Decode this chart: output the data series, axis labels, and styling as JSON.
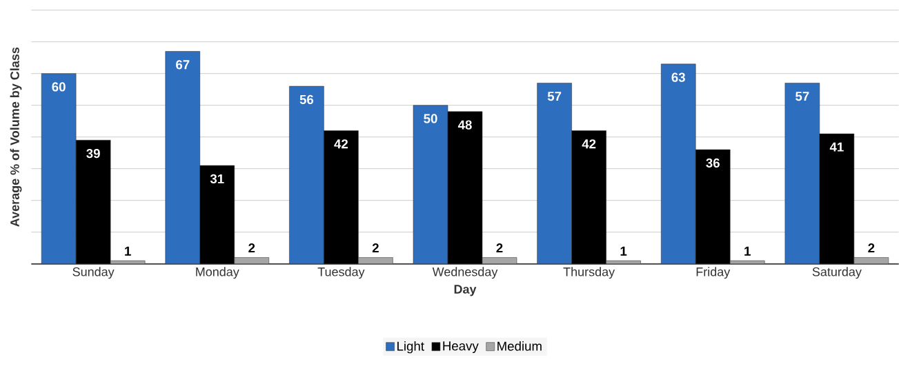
{
  "chart_data": {
    "type": "bar",
    "xlabel": "Day",
    "ylabel": "Average % of Volume by Class",
    "categories": [
      "Sunday",
      "Monday",
      "Tuesday",
      "Wednesday",
      "Thursday",
      "Friday",
      "Saturday"
    ],
    "series": [
      {
        "name": "Light",
        "color": "#2e6ebe",
        "values": [
          60,
          67,
          56,
          50,
          57,
          63,
          57
        ]
      },
      {
        "name": "Heavy",
        "color": "#000000",
        "values": [
          39,
          31,
          42,
          48,
          42,
          36,
          41
        ]
      },
      {
        "name": "Medium",
        "color": "#a6a6a6",
        "values": [
          1,
          2,
          2,
          2,
          1,
          1,
          2
        ]
      }
    ],
    "ylim": [
      0,
      80
    ],
    "yticks": [
      {
        "value": 0,
        "label": null
      },
      {
        "value": 10,
        "label": null
      },
      {
        "value": 20,
        "label": null
      },
      {
        "value": 30,
        "label": null
      },
      {
        "value": 40,
        "label": null
      },
      {
        "value": 50,
        "label": null
      },
      {
        "value": 60,
        "label": null
      },
      {
        "value": 70,
        "label": null
      },
      {
        "value": 80,
        "label": null
      }
    ],
    "tick_labels": "x",
    "grid": "y",
    "data_labels": true,
    "legend": "bottom"
  }
}
